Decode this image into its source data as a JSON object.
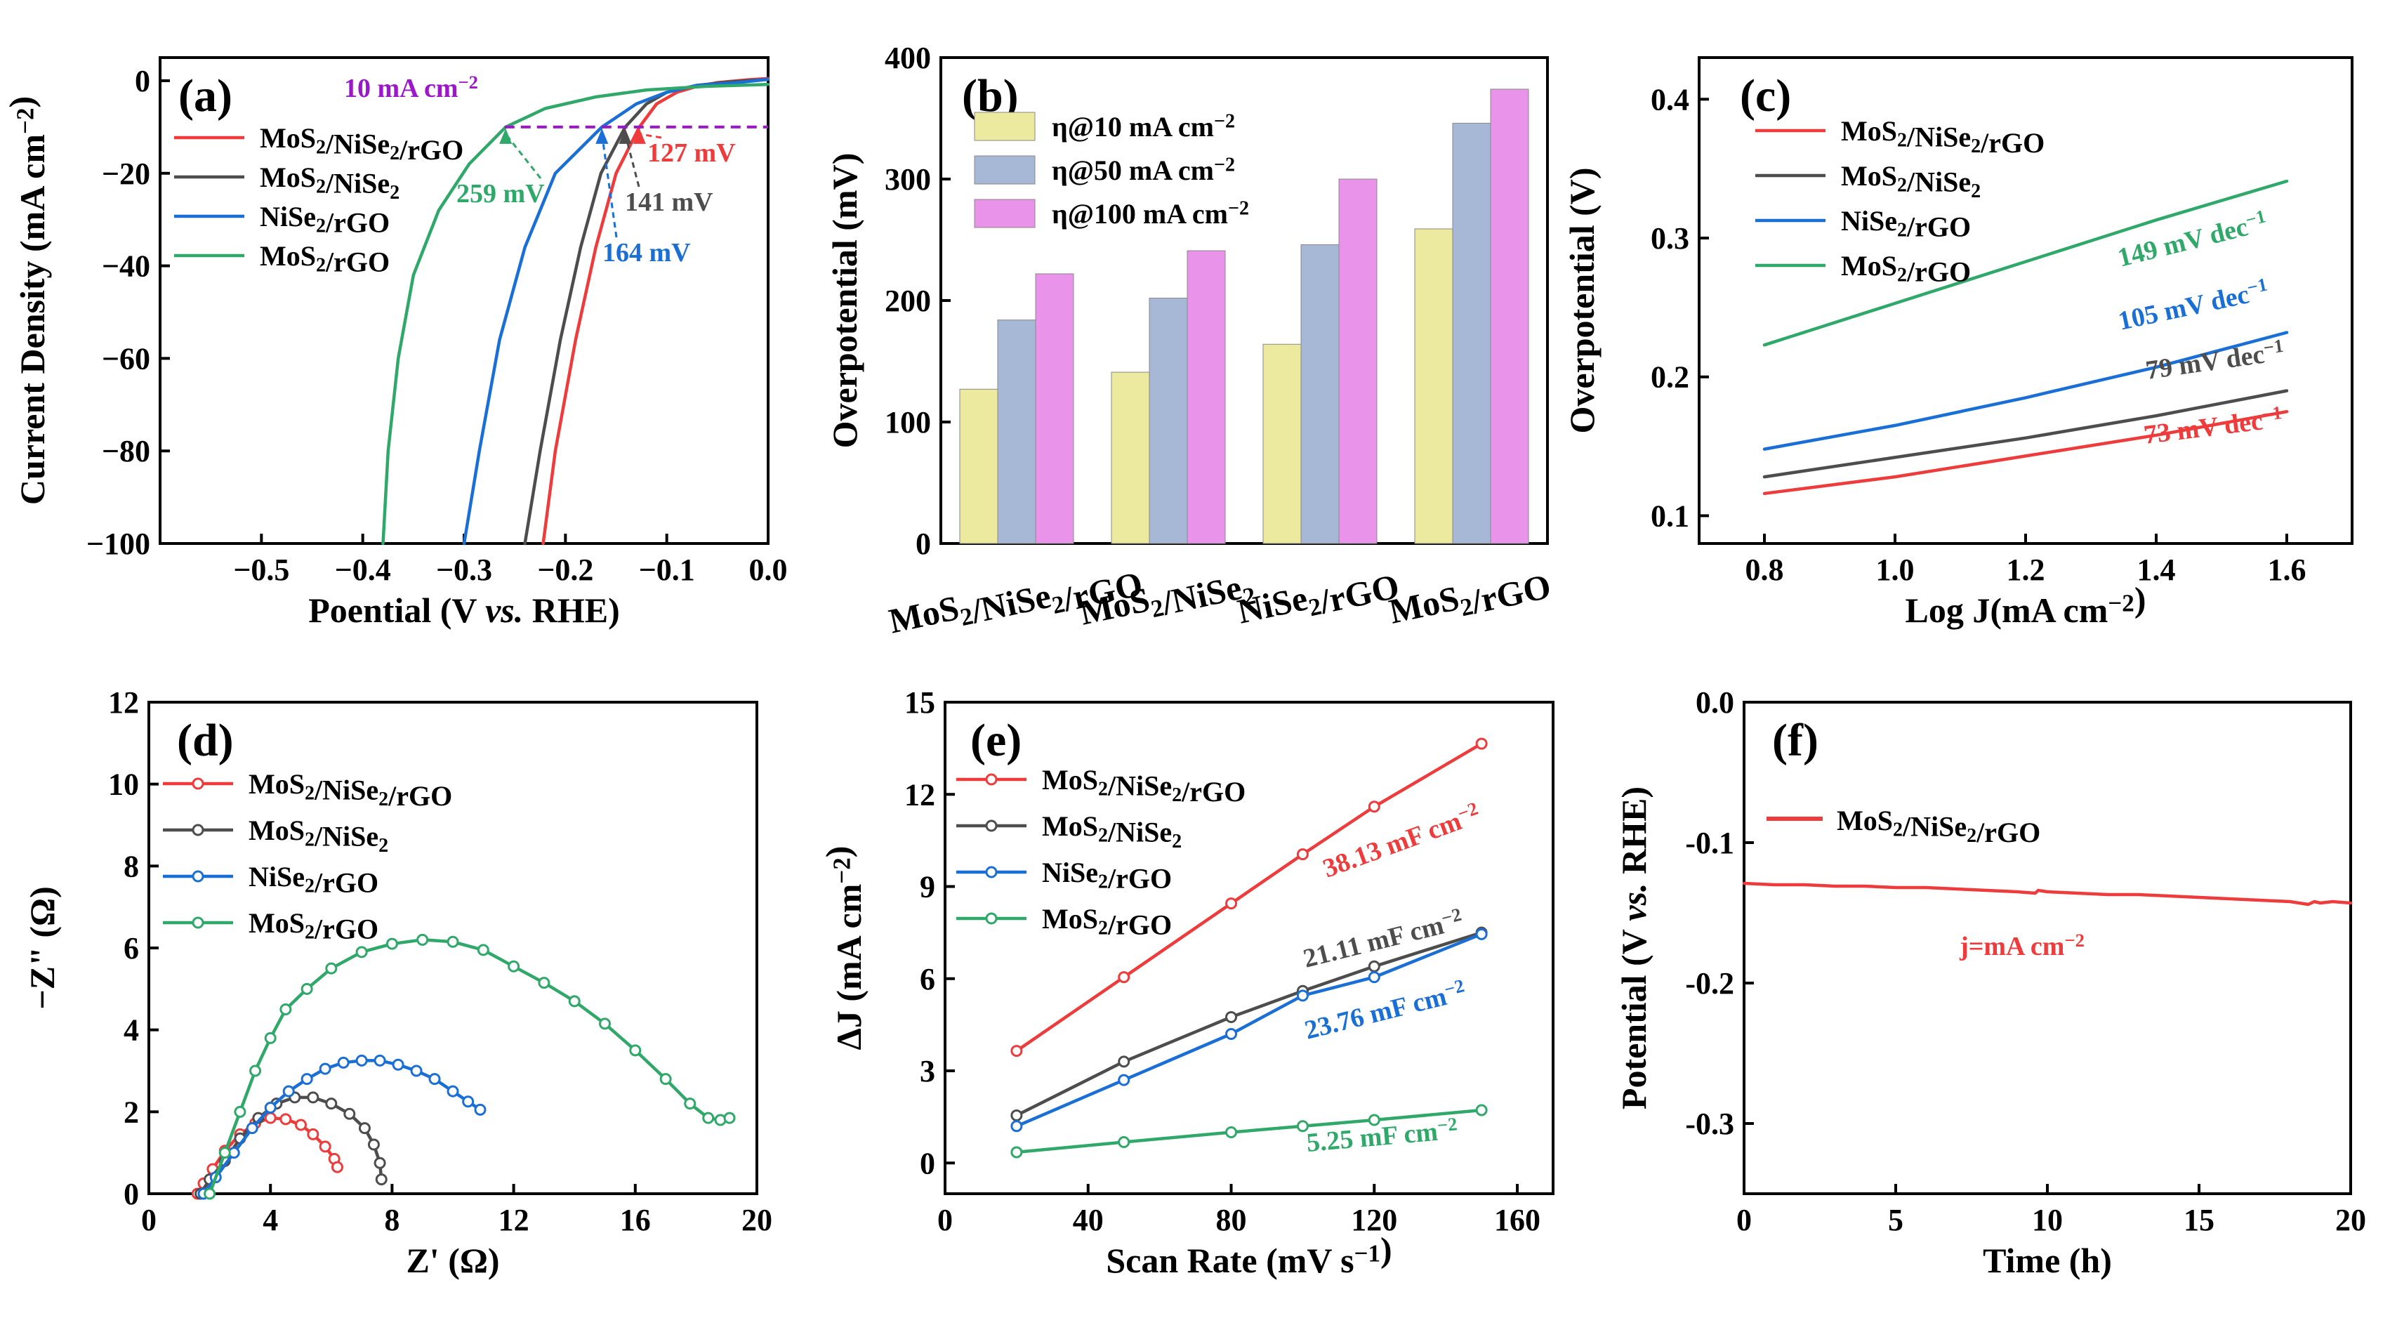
{
  "colors": {
    "red": "#ee3b3b",
    "gray": "#4d4d4d",
    "blue": "#1a6fd6",
    "green": "#2fa86a",
    "purple": "#9b17c9",
    "barYellow": "#ecea9e",
    "barBlue": "#a6b8d6",
    "barPink": "#ea93ea"
  },
  "series_names": [
    "MoS2/NiSe2/rGO",
    "MoS2/NiSe2",
    "NiSe2/rGO",
    "MoS2/rGO"
  ],
  "chart_data": [
    {
      "panel": "a",
      "type": "line",
      "label": "(a)",
      "xlabel": "Poential (V vs. RHE)",
      "ylabel": "Current Density (mA cm−2)",
      "xlim": [
        -0.6,
        0.0
      ],
      "ylim": [
        -100,
        5
      ],
      "xticks": [
        -0.5,
        -0.4,
        -0.3,
        -0.2,
        -0.1,
        0.0
      ],
      "xtick_labels": [
        "−0.5",
        "−0.4",
        "−0.3",
        "−0.2",
        "−0.1",
        "0.0"
      ],
      "yticks": [
        0,
        -20,
        -40,
        -60,
        -80,
        -100
      ],
      "ytick_labels": [
        "0",
        "−20",
        "−40",
        "−60",
        "−80",
        "−100"
      ],
      "reference_line": {
        "y": -10,
        "label": "10 mA cm−2"
      },
      "series": [
        {
          "name": "MoS2/NiSe2/rGO",
          "color": "red",
          "x": [
            -0.222,
            -0.21,
            -0.19,
            -0.17,
            -0.15,
            -0.127,
            -0.11,
            -0.09,
            -0.07,
            -0.05,
            -0.02,
            0.0
          ],
          "y": [
            -100,
            -80,
            -56,
            -36,
            -20,
            -10,
            -5,
            -2.5,
            -1.2,
            -0.4,
            0.2,
            0.5
          ]
        },
        {
          "name": "MoS2/NiSe2",
          "color": "gray",
          "x": [
            -0.24,
            -0.225,
            -0.205,
            -0.185,
            -0.165,
            -0.141,
            -0.12,
            -0.1,
            -0.07,
            -0.04,
            0.0
          ],
          "y": [
            -100,
            -80,
            -56,
            -36,
            -20,
            -10,
            -5,
            -2.5,
            -1,
            -0.3,
            0.3
          ]
        },
        {
          "name": "NiSe2/rGO",
          "color": "blue",
          "x": [
            -0.3,
            -0.285,
            -0.265,
            -0.24,
            -0.21,
            -0.164,
            -0.13,
            -0.1,
            -0.07,
            -0.03,
            0.0
          ],
          "y": [
            -100,
            -80,
            -56,
            -36,
            -20,
            -10,
            -5,
            -2.5,
            -1,
            -0.4,
            0.3
          ]
        },
        {
          "name": "MoS2/rGO",
          "color": "green",
          "x": [
            -0.38,
            -0.375,
            -0.365,
            -0.35,
            -0.325,
            -0.295,
            -0.259,
            -0.22,
            -0.17,
            -0.12,
            -0.06,
            0.0
          ],
          "y": [
            -100,
            -80,
            -60,
            -42,
            -28,
            -18,
            -10,
            -6,
            -3.5,
            -2,
            -1.2,
            -0.8
          ]
        }
      ],
      "annotations": [
        {
          "text": "127 mV",
          "color": "red",
          "x": -0.127,
          "y": -10
        },
        {
          "text": "141 mV",
          "color": "gray",
          "x": -0.141,
          "y": -10
        },
        {
          "text": "164 mV",
          "color": "blue",
          "x": -0.164,
          "y": -10
        },
        {
          "text": "259 mV",
          "color": "green",
          "x": -0.259,
          "y": -10
        }
      ]
    },
    {
      "panel": "b",
      "type": "bar",
      "label": "(b)",
      "xlabel": "",
      "ylabel": "Overpotential (mV)",
      "ylim": [
        0,
        400
      ],
      "yticks": [
        0,
        100,
        200,
        300,
        400
      ],
      "categories": [
        "MoS2/NiSe2/rGO",
        "MoS2/NiSe2",
        "NiSe2/rGO",
        "MoS2/rGO"
      ],
      "category_colors": [
        "red",
        "blue",
        "gray",
        "green"
      ],
      "series": [
        {
          "name": "η@10 mA cm−2",
          "color": "barYellow",
          "values": [
            127,
            141,
            164,
            259
          ]
        },
        {
          "name": "η@50 mA cm−2",
          "color": "barBlue",
          "values": [
            184,
            202,
            246,
            346
          ]
        },
        {
          "name": "η@100 mA cm−2",
          "color": "barPink",
          "values": [
            222,
            241,
            300,
            374
          ]
        }
      ]
    },
    {
      "panel": "c",
      "type": "line",
      "label": "(c)",
      "xlabel": "Log J(mA cm−2)",
      "ylabel": "Overpotential (V)",
      "xlim": [
        0.7,
        1.7
      ],
      "ylim": [
        0.08,
        0.43
      ],
      "xticks": [
        0.8,
        1.0,
        1.2,
        1.4,
        1.6
      ],
      "xtick_labels": [
        "0.8",
        "1.0",
        "1.2",
        "1.4",
        "1.6"
      ],
      "yticks": [
        0.1,
        0.2,
        0.3,
        0.4
      ],
      "ytick_labels": [
        "0.1",
        "0.2",
        "0.3",
        "0.4"
      ],
      "series": [
        {
          "name": "MoS2/NiSe2/rGO",
          "color": "red",
          "x": [
            0.8,
            1.0,
            1.2,
            1.4,
            1.6
          ],
          "y": [
            0.116,
            0.128,
            0.143,
            0.158,
            0.175
          ],
          "slope_label": "73 mV dec−1"
        },
        {
          "name": "MoS2/NiSe2",
          "color": "gray",
          "x": [
            0.8,
            1.0,
            1.2,
            1.4,
            1.6
          ],
          "y": [
            0.128,
            0.142,
            0.156,
            0.172,
            0.19
          ],
          "slope_label": "79 mV dec−1"
        },
        {
          "name": "NiSe2/rGO",
          "color": "blue",
          "x": [
            0.8,
            1.0,
            1.2,
            1.4,
            1.6
          ],
          "y": [
            0.148,
            0.165,
            0.185,
            0.207,
            0.232
          ],
          "slope_label": "105 mV dec−1"
        },
        {
          "name": "MoS2/rGO",
          "color": "green",
          "x": [
            0.8,
            1.0,
            1.2,
            1.4,
            1.6
          ],
          "y": [
            0.223,
            0.253,
            0.283,
            0.313,
            0.341
          ],
          "slope_label": "149 mV dec−1"
        }
      ]
    },
    {
      "panel": "d",
      "type": "scatter",
      "label": "(d)",
      "xlabel": "Z' (Ω)",
      "ylabel": "−Z\" (Ω)",
      "xlim": [
        0,
        20
      ],
      "ylim": [
        0,
        12
      ],
      "xticks": [
        0,
        4,
        8,
        12,
        16,
        20
      ],
      "xtick_labels": [
        "0",
        "4",
        "8",
        "12",
        "16",
        "20"
      ],
      "yticks": [
        0,
        2,
        4,
        6,
        8,
        10,
        12
      ],
      "ytick_labels": [
        "0",
        "2",
        "4",
        "6",
        "8",
        "10",
        "12"
      ],
      "series": [
        {
          "name": "MoS2/NiSe2/rGO",
          "color": "red",
          "x": [
            1.6,
            1.8,
            2.1,
            2.5,
            3.0,
            3.5,
            4.0,
            4.5,
            5.0,
            5.4,
            5.8,
            6.1,
            6.2
          ],
          "y": [
            0.0,
            0.25,
            0.6,
            1.05,
            1.45,
            1.72,
            1.85,
            1.82,
            1.68,
            1.45,
            1.15,
            0.85,
            0.65
          ]
        },
        {
          "name": "MoS2/NiSe2",
          "color": "gray",
          "x": [
            1.7,
            2.0,
            2.5,
            3.0,
            3.6,
            4.2,
            4.8,
            5.4,
            6.0,
            6.6,
            7.1,
            7.4,
            7.6,
            7.65
          ],
          "y": [
            0.0,
            0.35,
            0.8,
            1.35,
            1.85,
            2.2,
            2.35,
            2.35,
            2.2,
            1.95,
            1.6,
            1.2,
            0.75,
            0.35
          ]
        },
        {
          "name": "NiSe2/rGO",
          "color": "blue",
          "x": [
            1.8,
            2.2,
            2.8,
            3.4,
            4.0,
            4.6,
            5.2,
            5.8,
            6.4,
            7.0,
            7.6,
            8.2,
            8.8,
            9.4,
            10.0,
            10.5,
            10.9
          ],
          "y": [
            0.0,
            0.4,
            1.0,
            1.6,
            2.1,
            2.5,
            2.8,
            3.05,
            3.2,
            3.25,
            3.25,
            3.15,
            3.0,
            2.8,
            2.5,
            2.25,
            2.05
          ]
        },
        {
          "name": "MoS2/rGO",
          "color": "green",
          "x": [
            2.0,
            2.5,
            3.0,
            3.5,
            4.0,
            4.5,
            5.2,
            6.0,
            7.0,
            8.0,
            9.0,
            10.0,
            11.0,
            12.0,
            13.0,
            14.0,
            15.0,
            16.0,
            17.0,
            17.8,
            18.4,
            18.8,
            19.1
          ],
          "y": [
            0.0,
            1.0,
            2.0,
            3.0,
            3.8,
            4.5,
            5.0,
            5.5,
            5.9,
            6.1,
            6.2,
            6.15,
            5.95,
            5.55,
            5.15,
            4.7,
            4.15,
            3.5,
            2.8,
            2.2,
            1.85,
            1.8,
            1.85
          ]
        }
      ]
    },
    {
      "panel": "e",
      "type": "line",
      "label": "(e)",
      "xlabel": "Scan Rate (mV s−1)",
      "ylabel": "ΔJ (mA cm−2)",
      "xlim": [
        0,
        170
      ],
      "ylim": [
        -1,
        15
      ],
      "xticks": [
        0,
        40,
        80,
        120,
        160
      ],
      "xtick_labels": [
        "0",
        "40",
        "80",
        "120",
        "160"
      ],
      "yticks": [
        0,
        3,
        6,
        9,
        12,
        15
      ],
      "ytick_labels": [
        "0",
        "3",
        "6",
        "9",
        "12",
        "15"
      ],
      "series": [
        {
          "name": "MoS2/NiSe2/rGO",
          "color": "red",
          "x": [
            20,
            50,
            80,
            100,
            120,
            150
          ],
          "y": [
            3.65,
            6.05,
            8.45,
            10.05,
            11.6,
            13.65
          ],
          "slope_label": "38.13 mF cm−2"
        },
        {
          "name": "MoS2/NiSe2",
          "color": "gray",
          "x": [
            20,
            50,
            80,
            100,
            120,
            150
          ],
          "y": [
            1.55,
            3.3,
            4.75,
            5.6,
            6.4,
            7.5
          ],
          "slope_label": "21.11 mF cm−2"
        },
        {
          "name": "NiSe2/rGO",
          "color": "blue",
          "x": [
            20,
            50,
            80,
            100,
            120,
            150
          ],
          "y": [
            1.2,
            2.7,
            4.2,
            5.45,
            6.05,
            7.45
          ],
          "slope_label": "23.76 mF cm−2"
        },
        {
          "name": "MoS2/rGO",
          "color": "green",
          "x": [
            20,
            50,
            80,
            100,
            120,
            150
          ],
          "y": [
            0.35,
            0.68,
            1.0,
            1.2,
            1.4,
            1.72
          ],
          "slope_label": "5.25 mF cm−2"
        }
      ]
    },
    {
      "panel": "f",
      "type": "line",
      "label": "(f)",
      "xlabel": "Time (h)",
      "ylabel": "Potential (V vs. RHE)",
      "xlim": [
        0,
        20
      ],
      "ylim": [
        -0.35,
        0.0
      ],
      "xticks": [
        0,
        5,
        10,
        15,
        20
      ],
      "xtick_labels": [
        "0",
        "5",
        "10",
        "15",
        "20"
      ],
      "yticks": [
        0.0,
        -0.1,
        -0.2,
        -0.3
      ],
      "ytick_labels": [
        "0.0",
        "-0.1",
        "-0.2",
        "-0.3"
      ],
      "note": "j=mA cm−2",
      "series": [
        {
          "name": "MoS2/NiSe2/rGO",
          "color": "red",
          "x": [
            0,
            1,
            2,
            3,
            4,
            5,
            6,
            7,
            8,
            9,
            9.6,
            9.7,
            10,
            11,
            12,
            13,
            14,
            15,
            16,
            17,
            18,
            18.6,
            18.8,
            19,
            19.4,
            20
          ],
          "y": [
            -0.129,
            -0.13,
            -0.13,
            -0.131,
            -0.131,
            -0.132,
            -0.132,
            -0.133,
            -0.134,
            -0.135,
            -0.136,
            -0.134,
            -0.135,
            -0.136,
            -0.137,
            -0.137,
            -0.138,
            -0.139,
            -0.14,
            -0.141,
            -0.142,
            -0.144,
            -0.142,
            -0.143,
            -0.142,
            -0.143
          ]
        }
      ]
    }
  ]
}
